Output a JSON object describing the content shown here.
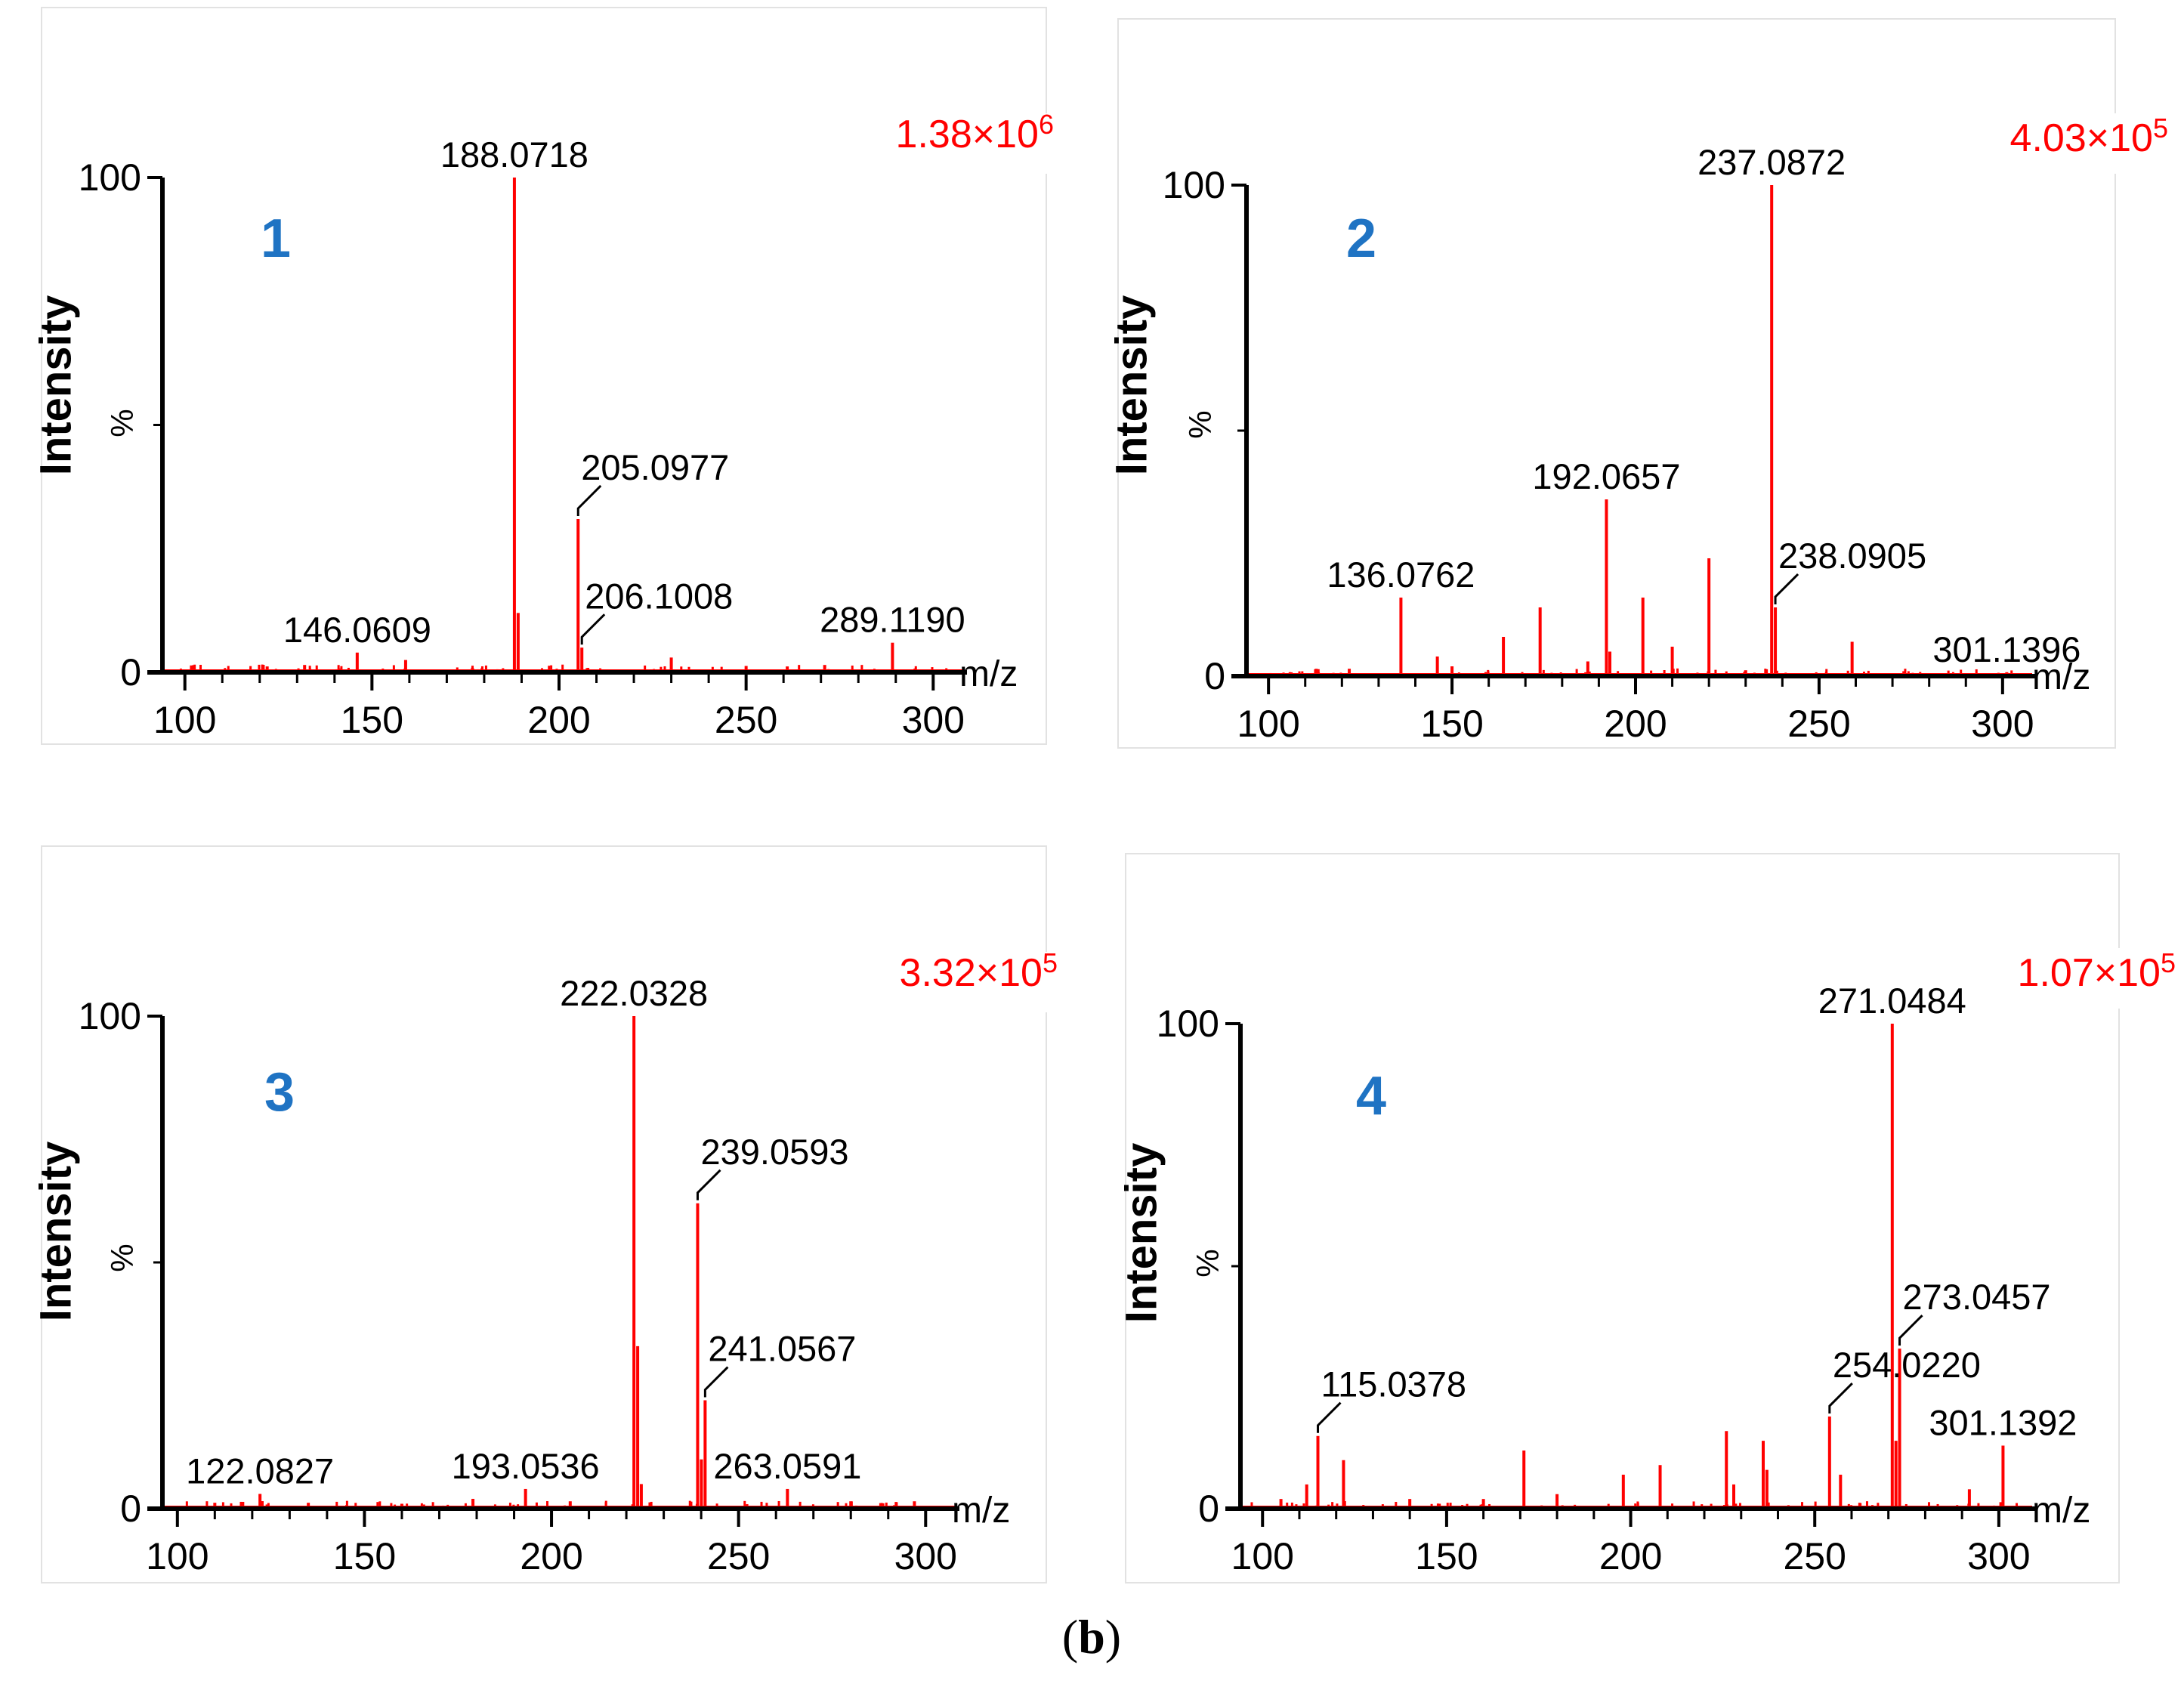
{
  "figure_caption": "(b)",
  "colors": {
    "spectrum": "#ff0000",
    "panel_number": "#1f73c3",
    "scale": "#ff0000",
    "axis": "#000000"
  },
  "chart_data": [
    {
      "type": "bar",
      "panel": "1",
      "scale_base": "1.38×10",
      "scale_exp": "6",
      "ylabel": "Intensity",
      "ylabel_unit": "%",
      "xlabel": "m/z",
      "xlim": [
        94,
        306
      ],
      "ylim": [
        0,
        100
      ],
      "xticks": [
        100,
        150,
        200,
        250,
        300
      ],
      "yticks": [
        0,
        100
      ],
      "peaks": [
        {
          "mz": 188.0718,
          "intensity": 100,
          "label": "188.0718"
        },
        {
          "mz": 189.07,
          "intensity": 12
        },
        {
          "mz": 205.0977,
          "intensity": 31,
          "label": "205.0977",
          "leader": true
        },
        {
          "mz": 206.1008,
          "intensity": 5,
          "label": "206.1008",
          "leader": true
        },
        {
          "mz": 146.0609,
          "intensity": 4,
          "label": "146.0609"
        },
        {
          "mz": 289.119,
          "intensity": 6,
          "label": "289.1190"
        },
        {
          "mz": 159.0,
          "intensity": 2.5
        },
        {
          "mz": 132.0,
          "intensity": 1.5
        },
        {
          "mz": 122.0,
          "intensity": 1.2
        },
        {
          "mz": 230.0,
          "intensity": 3
        },
        {
          "mz": 250.0,
          "intensity": 1.3
        },
        {
          "mz": 261.0,
          "intensity": 1.2
        },
        {
          "mz": 271.0,
          "intensity": 1.5
        }
      ]
    },
    {
      "type": "bar",
      "panel": "2",
      "scale_base": "4.03×10",
      "scale_exp": "5",
      "ylabel": "Intensity",
      "ylabel_unit": "%",
      "xlabel": "m/z",
      "xlim": [
        94,
        306
      ],
      "ylim": [
        0,
        100
      ],
      "xticks": [
        100,
        150,
        200,
        250,
        300
      ],
      "yticks": [
        0,
        100
      ],
      "peaks": [
        {
          "mz": 237.0872,
          "intensity": 100,
          "label": "237.0872"
        },
        {
          "mz": 238.0905,
          "intensity": 14,
          "label": "238.0905",
          "leader": true
        },
        {
          "mz": 192.0657,
          "intensity": 36,
          "label": "192.0657"
        },
        {
          "mz": 136.0762,
          "intensity": 16,
          "label": "136.0762"
        },
        {
          "mz": 301.1396,
          "intensity": 0.8,
          "label": "301.1396"
        },
        {
          "mz": 220.0,
          "intensity": 24
        },
        {
          "mz": 202.0,
          "intensity": 16
        },
        {
          "mz": 174.0,
          "intensity": 14
        },
        {
          "mz": 164.0,
          "intensity": 8
        },
        {
          "mz": 210.0,
          "intensity": 6
        },
        {
          "mz": 259.0,
          "intensity": 7
        },
        {
          "mz": 146.0,
          "intensity": 4
        },
        {
          "mz": 193.0,
          "intensity": 5
        },
        {
          "mz": 150.0,
          "intensity": 2
        },
        {
          "mz": 187.0,
          "intensity": 3
        },
        {
          "mz": 113.0,
          "intensity": 1.5
        },
        {
          "mz": 122.0,
          "intensity": 1.5
        },
        {
          "mz": 230.0,
          "intensity": 1.2
        }
      ]
    },
    {
      "type": "bar",
      "panel": "3",
      "scale_base": "3.32×10",
      "scale_exp": "5",
      "ylabel": "Intensity",
      "ylabel_unit": "%",
      "xlabel": "m/z",
      "xlim": [
        96,
        306
      ],
      "ylim": [
        0,
        100
      ],
      "xticks": [
        100,
        150,
        200,
        250,
        300
      ],
      "yticks": [
        0,
        100
      ],
      "peaks": [
        {
          "mz": 222.0328,
          "intensity": 100,
          "label": "222.0328"
        },
        {
          "mz": 223.03,
          "intensity": 33
        },
        {
          "mz": 224.0,
          "intensity": 5
        },
        {
          "mz": 239.0593,
          "intensity": 62,
          "label": "239.0593",
          "leader": true
        },
        {
          "mz": 241.0567,
          "intensity": 22,
          "label": "241.0567",
          "leader": true
        },
        {
          "mz": 240.06,
          "intensity": 10
        },
        {
          "mz": 263.0591,
          "intensity": 4,
          "label": "263.0591"
        },
        {
          "mz": 193.0536,
          "intensity": 4,
          "label": "193.0536"
        },
        {
          "mz": 122.0827,
          "intensity": 3,
          "label": "122.0827"
        },
        {
          "mz": 179.0,
          "intensity": 2
        },
        {
          "mz": 205.0,
          "intensity": 1.5
        },
        {
          "mz": 110.0,
          "intensity": 1.2
        },
        {
          "mz": 135.0,
          "intensity": 1.2
        },
        {
          "mz": 160.0,
          "intensity": 1
        },
        {
          "mz": 280.0,
          "intensity": 1.5
        },
        {
          "mz": 297.0,
          "intensity": 1.5
        }
      ]
    },
    {
      "type": "bar",
      "panel": "4",
      "scale_base": "1.07×10",
      "scale_exp": "5",
      "ylabel": "Intensity",
      "ylabel_unit": "%",
      "xlabel": "m/z",
      "xlim": [
        94,
        307
      ],
      "ylim": [
        0,
        100
      ],
      "xticks": [
        100,
        150,
        200,
        250,
        300
      ],
      "yticks": [
        0,
        100
      ],
      "peaks": [
        {
          "mz": 271.0484,
          "intensity": 100,
          "label": "271.0484"
        },
        {
          "mz": 273.0457,
          "intensity": 33,
          "label": "273.0457",
          "leader": true
        },
        {
          "mz": 272.05,
          "intensity": 14
        },
        {
          "mz": 254.022,
          "intensity": 19,
          "label": "254.0220",
          "leader": true
        },
        {
          "mz": 115.0378,
          "intensity": 15,
          "label": "115.0378",
          "leader": true
        },
        {
          "mz": 301.1392,
          "intensity": 13,
          "label": "301.1392"
        },
        {
          "mz": 122.0,
          "intensity": 10
        },
        {
          "mz": 171.0,
          "intensity": 12
        },
        {
          "mz": 226.0,
          "intensity": 16
        },
        {
          "mz": 236.0,
          "intensity": 14
        },
        {
          "mz": 208.0,
          "intensity": 9
        },
        {
          "mz": 198.0,
          "intensity": 7
        },
        {
          "mz": 257.0,
          "intensity": 7
        },
        {
          "mz": 112.0,
          "intensity": 5
        },
        {
          "mz": 237.0,
          "intensity": 8
        },
        {
          "mz": 292.0,
          "intensity": 4
        },
        {
          "mz": 105.0,
          "intensity": 2
        },
        {
          "mz": 180.0,
          "intensity": 3
        },
        {
          "mz": 228.0,
          "intensity": 5
        },
        {
          "mz": 140.0,
          "intensity": 2
        },
        {
          "mz": 160.0,
          "intensity": 2
        }
      ]
    }
  ]
}
